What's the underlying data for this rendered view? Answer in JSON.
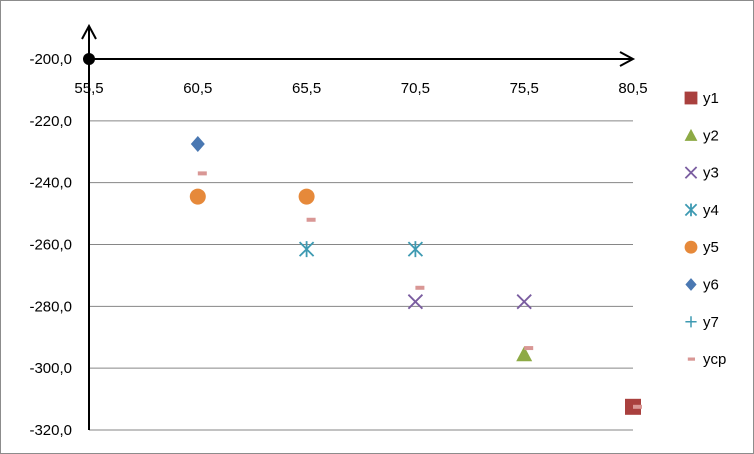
{
  "chart_data": {
    "type": "scatter",
    "x_ticks": [
      "55,5",
      "60,5",
      "65,5",
      "70,5",
      "75,5",
      "80,5"
    ],
    "y_ticks": [
      "-200,0",
      "-220,0",
      "-240,0",
      "-260,0",
      "-280,0",
      "-300,0",
      "-320,0"
    ],
    "xlim": [
      55.5,
      80.5
    ],
    "ylim": [
      -320,
      -200
    ],
    "grid": "horizontal",
    "legend_position": "right",
    "series": [
      {
        "name": "y1",
        "marker": "square",
        "color": "#A9403E",
        "points": [
          [
            80.5,
            -312.5
          ]
        ]
      },
      {
        "name": "y2",
        "marker": "triangle",
        "color": "#8DAA45",
        "points": [
          [
            75.5,
            -295.5
          ]
        ]
      },
      {
        "name": "y3",
        "marker": "x",
        "color": "#7A5DA0",
        "points": [
          [
            70.5,
            -278.5
          ],
          [
            75.5,
            -278.5
          ]
        ]
      },
      {
        "name": "y4",
        "marker": "asterisk",
        "color": "#3E9AB2",
        "points": [
          [
            65.5,
            -261.5
          ],
          [
            70.5,
            -261.5
          ]
        ]
      },
      {
        "name": "y5",
        "marker": "circle",
        "color": "#E6893A",
        "points": [
          [
            60.5,
            -244.5
          ],
          [
            65.5,
            -244.5
          ]
        ]
      },
      {
        "name": "y6",
        "marker": "diamond",
        "color": "#4A78B2",
        "points": [
          [
            60.5,
            -227.5
          ]
        ]
      },
      {
        "name": "y7",
        "marker": "plus",
        "color": "#3E9AB2",
        "points": []
      },
      {
        "name": "ycp",
        "marker": "dash",
        "color": "#D99795",
        "points": [
          [
            60.5,
            -237
          ],
          [
            65.5,
            -252
          ],
          [
            70.5,
            -274
          ],
          [
            75.5,
            -293.5
          ],
          [
            80.5,
            -312.5
          ]
        ]
      }
    ]
  }
}
